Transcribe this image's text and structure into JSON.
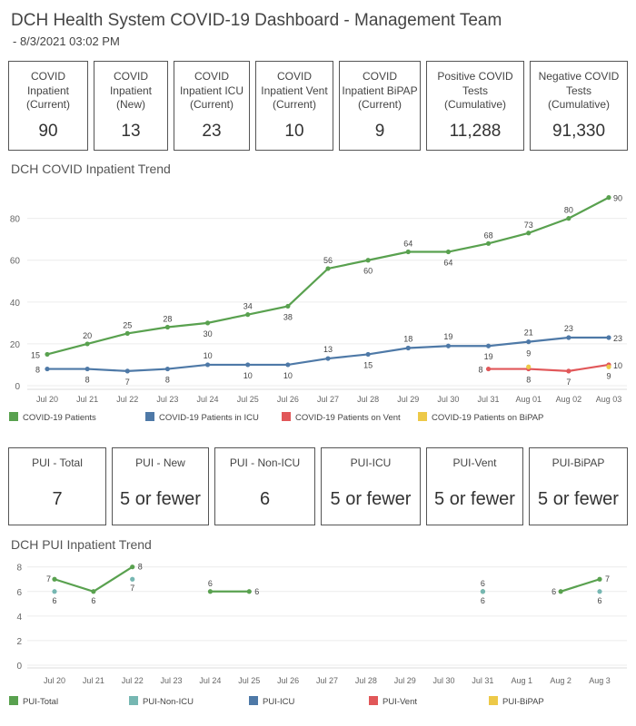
{
  "header": {
    "title": "DCH Health System COVID-19 Dashboard - Management Team",
    "subtitle": " - 8/3/2021 03:02 PM"
  },
  "kpis": [
    {
      "label": "COVID\nInpatient\n(Current)",
      "value": "90"
    },
    {
      "label": "COVID\nInpatient\n(New)",
      "value": "13"
    },
    {
      "label": "COVID\nInpatient ICU\n(Current)",
      "value": "23"
    },
    {
      "label": "COVID\nInpatient Vent\n(Current)",
      "value": "10"
    },
    {
      "label": "COVID\nInpatient BiPAP\n(Current)",
      "value": "9"
    },
    {
      "label": "Positive COVID\nTests\n(Cumulative)",
      "value": "11,288"
    },
    {
      "label": "Negative COVID\nTests\n(Cumulative)",
      "value": "91,330"
    }
  ],
  "pui_kpis": [
    {
      "label": "PUI - Total",
      "value": "7"
    },
    {
      "label": "PUI - New",
      "value": "5 or fewer"
    },
    {
      "label": "PUI - Non-ICU",
      "value": "6"
    },
    {
      "label": "PUI-ICU",
      "value": "5 or fewer"
    },
    {
      "label": "PUI-Vent",
      "value": "5 or fewer"
    },
    {
      "label": "PUI-BiPAP",
      "value": "5 or fewer"
    }
  ],
  "colors": {
    "green": "#59a14f",
    "teal": "#76b7b2",
    "blue": "#4e79a7",
    "red": "#e15759",
    "yellow": "#edc948"
  },
  "chart_data": [
    {
      "title": "DCH COVID Inpatient Trend",
      "type": "line",
      "categories": [
        "Jul 20",
        "Jul 21",
        "Jul 22",
        "Jul 23",
        "Jul 24",
        "Jul 25",
        "Jul 26",
        "Jul 27",
        "Jul 28",
        "Jul 29",
        "Jul 30",
        "Jul 31",
        "Aug 01",
        "Aug 02",
        "Aug 03"
      ],
      "yticks": [
        0,
        20,
        40,
        60,
        80
      ],
      "ylim": [
        0,
        92
      ],
      "grid": true,
      "legend_position": "bottom",
      "series": [
        {
          "name": "COVID-19 Patients",
          "color": "#59a14f",
          "values": [
            15,
            20,
            25,
            28,
            30,
            34,
            38,
            56,
            60,
            64,
            64,
            68,
            73,
            80,
            90
          ]
        },
        {
          "name": "COVID-19 Patients in ICU",
          "color": "#4e79a7",
          "values": [
            8,
            8,
            7,
            8,
            10,
            10,
            10,
            13,
            15,
            18,
            19,
            19,
            21,
            23,
            23
          ]
        },
        {
          "name": "COVID-19 Patients on Vent",
          "color": "#e15759",
          "values": [
            null,
            null,
            null,
            null,
            null,
            null,
            null,
            null,
            null,
            null,
            null,
            8,
            8,
            7,
            10
          ]
        },
        {
          "name": "COVID-19 Patients on BiPAP",
          "color": "#edc948",
          "values": [
            null,
            null,
            null,
            null,
            null,
            null,
            null,
            null,
            null,
            null,
            null,
            null,
            9,
            null,
            9
          ]
        }
      ]
    },
    {
      "title": "DCH PUI Inpatient Trend",
      "type": "line",
      "categories": [
        "Jul 20",
        "Jul 21",
        "Jul 22",
        "Jul 23",
        "Jul 24",
        "Jul 25",
        "Jul 26",
        "Jul 27",
        "Jul 28",
        "Jul 29",
        "Jul 30",
        "Jul 31",
        "Aug 1",
        "Aug 2",
        "Aug 3"
      ],
      "yticks": [
        0,
        2,
        4,
        6,
        8
      ],
      "ylim": [
        0,
        8.2
      ],
      "grid": true,
      "legend_position": "bottom",
      "series": [
        {
          "name": "PUI-Total",
          "color": "#59a14f",
          "values": [
            7,
            6,
            8,
            null,
            6,
            6,
            null,
            null,
            null,
            null,
            null,
            6,
            null,
            6,
            7
          ]
        },
        {
          "name": "PUI-Non-ICU",
          "color": "#76b7b2",
          "values": [
            6,
            null,
            7,
            null,
            null,
            null,
            null,
            null,
            null,
            null,
            null,
            6,
            null,
            null,
            6
          ]
        },
        {
          "name": "PUI-ICU",
          "color": "#4e79a7",
          "values": [
            null,
            null,
            null,
            null,
            null,
            null,
            null,
            null,
            null,
            null,
            null,
            null,
            null,
            null,
            null
          ]
        },
        {
          "name": "PUI-Vent",
          "color": "#e15759",
          "values": [
            null,
            null,
            null,
            null,
            null,
            null,
            null,
            null,
            null,
            null,
            null,
            null,
            null,
            null,
            null
          ]
        },
        {
          "name": "PUI-BiPAP",
          "color": "#edc948",
          "values": [
            null,
            null,
            null,
            null,
            null,
            null,
            null,
            null,
            null,
            null,
            null,
            null,
            null,
            null,
            null
          ]
        }
      ]
    }
  ]
}
